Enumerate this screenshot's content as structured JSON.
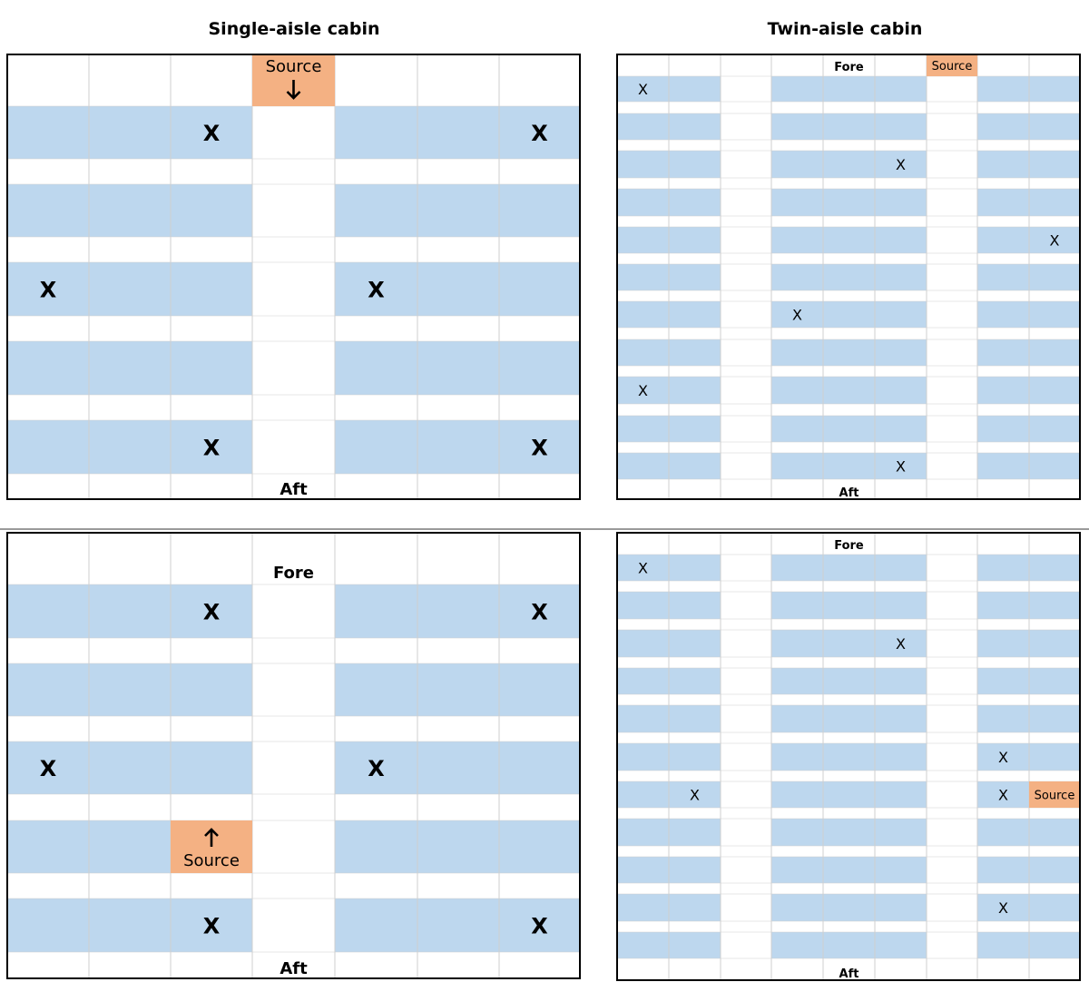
{
  "titles": {
    "single": "Single-aisle cabin",
    "twin": "Twin-aisle cabin"
  },
  "colors": {
    "seat": "#bdd7ee",
    "source": "#f4b183",
    "border": "#000000",
    "grid": "#cfcfcf"
  },
  "panels": [
    {
      "id": "single-top",
      "fore_label": "",
      "aft_label": "Aft",
      "source": {
        "label": "Source",
        "arrow": "down",
        "row": 0,
        "col": 3
      },
      "x_marks": [
        [
          1,
          2
        ],
        [
          1,
          6
        ],
        [
          5,
          0
        ],
        [
          5,
          4
        ],
        [
          9,
          2
        ],
        [
          9,
          6
        ]
      ]
    },
    {
      "id": "single-bottom",
      "fore_label": "Fore",
      "aft_label": "Aft",
      "source": {
        "label": "Source",
        "arrow": "up",
        "row": 7,
        "col": 2
      },
      "x_marks": [
        [
          1,
          2
        ],
        [
          1,
          6
        ],
        [
          5,
          0
        ],
        [
          5,
          4
        ],
        [
          9,
          2
        ],
        [
          9,
          6
        ]
      ]
    },
    {
      "id": "twin-top",
      "fore_label": "Fore",
      "aft_label": "Aft",
      "source": {
        "label": "Source",
        "row": 0,
        "col": 6
      },
      "x_marks": [
        [
          1,
          0
        ],
        [
          5,
          5
        ],
        [
          9,
          8
        ],
        [
          13,
          3
        ],
        [
          17,
          0
        ],
        [
          21,
          5
        ]
      ]
    },
    {
      "id": "twin-bottom",
      "fore_label": "Fore",
      "aft_label": "Aft",
      "source": {
        "label": "Source",
        "row": 13,
        "col": 8
      },
      "x_marks": [
        [
          1,
          0
        ],
        [
          5,
          5
        ],
        [
          11,
          7
        ],
        [
          13,
          1
        ],
        [
          13,
          7
        ],
        [
          19,
          7
        ]
      ]
    }
  ],
  "x_symbol": "X"
}
